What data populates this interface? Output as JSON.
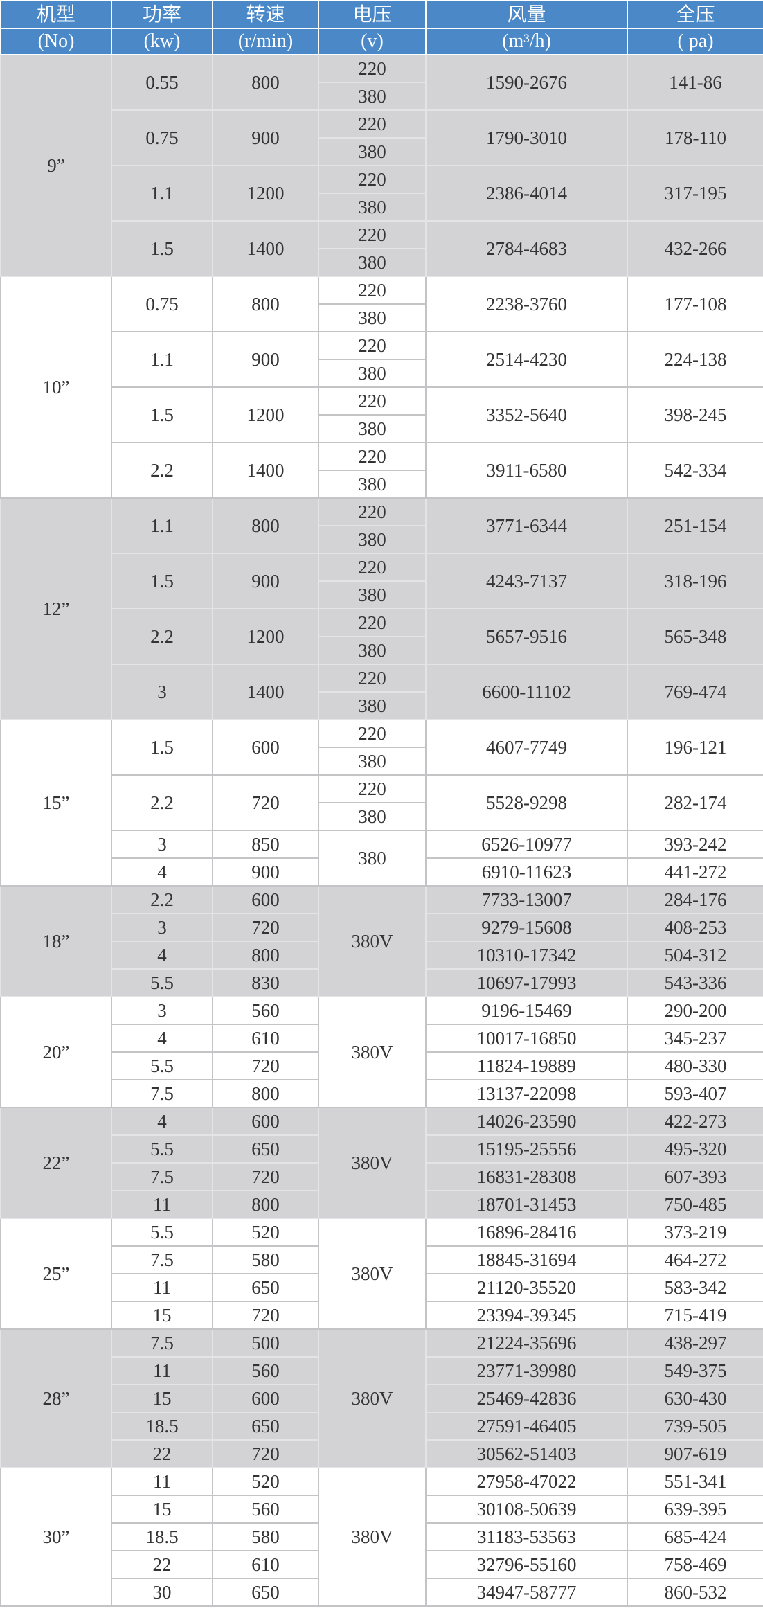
{
  "header": {
    "titles": [
      "机型",
      "功率",
      "转速",
      "电压",
      "风量",
      "全压"
    ],
    "units": [
      "(No)",
      "(kw)",
      "(r/min)",
      "(v)",
      "(m³/h)",
      "( pa)"
    ]
  },
  "colors": {
    "header_bg": "#4a88c8",
    "shaded_bg": "#d3d3d5",
    "text": "#333333"
  },
  "groups": [
    {
      "model": "9”",
      "shaded": true,
      "rows": [
        {
          "power": "0.55",
          "speed": "800",
          "voltage": [
            "220",
            "380"
          ],
          "airflow": "1590-2676",
          "pressure": "141-86"
        },
        {
          "power": "0.75",
          "speed": "900",
          "voltage": [
            "220",
            "380"
          ],
          "airflow": "1790-3010",
          "pressure": "178-110"
        },
        {
          "power": "1.1",
          "speed": "1200",
          "voltage": [
            "220",
            "380"
          ],
          "airflow": "2386-4014",
          "pressure": "317-195"
        },
        {
          "power": "1.5",
          "speed": "1400",
          "voltage": [
            "220",
            "380"
          ],
          "airflow": "2784-4683",
          "pressure": "432-266"
        }
      ]
    },
    {
      "model": "10”",
      "shaded": false,
      "rows": [
        {
          "power": "0.75",
          "speed": "800",
          "voltage": [
            "220",
            "380"
          ],
          "airflow": "2238-3760",
          "pressure": "177-108"
        },
        {
          "power": "1.1",
          "speed": "900",
          "voltage": [
            "220",
            "380"
          ],
          "airflow": "2514-4230",
          "pressure": "224-138"
        },
        {
          "power": "1.5",
          "speed": "1200",
          "voltage": [
            "220",
            "380"
          ],
          "airflow": "3352-5640",
          "pressure": "398-245"
        },
        {
          "power": "2.2",
          "speed": "1400",
          "voltage": [
            "220",
            "380"
          ],
          "airflow": "3911-6580",
          "pressure": "542-334"
        }
      ]
    },
    {
      "model": "12”",
      "shaded": true,
      "rows": [
        {
          "power": "1.1",
          "speed": "800",
          "voltage": [
            "220",
            "380"
          ],
          "airflow": "3771-6344",
          "pressure": "251-154"
        },
        {
          "power": "1.5",
          "speed": "900",
          "voltage": [
            "220",
            "380"
          ],
          "airflow": "4243-7137",
          "pressure": "318-196"
        },
        {
          "power": "2.2",
          "speed": "1200",
          "voltage": [
            "220",
            "380"
          ],
          "airflow": "5657-9516",
          "pressure": "565-348"
        },
        {
          "power": "3",
          "speed": "1400",
          "voltage": [
            "220",
            "380"
          ],
          "airflow": "6600-11102",
          "pressure": "769-474"
        }
      ]
    },
    {
      "model": "15”",
      "shaded": false,
      "shared_voltage": "380",
      "shared_from": 2,
      "rows": [
        {
          "power": "1.5",
          "speed": "600",
          "voltage": [
            "220",
            "380"
          ],
          "airflow": "4607-7749",
          "pressure": "196-121"
        },
        {
          "power": "2.2",
          "speed": "720",
          "voltage": [
            "220",
            "380"
          ],
          "airflow": "5528-9298",
          "pressure": "282-174"
        },
        {
          "power": "3",
          "speed": "850",
          "airflow": "6526-10977",
          "pressure": "393-242"
        },
        {
          "power": "4",
          "speed": "900",
          "airflow": "6910-11623",
          "pressure": "441-272"
        }
      ]
    },
    {
      "model": "18”",
      "shaded": true,
      "shared_voltage": "380V",
      "shared_from": 0,
      "rows": [
        {
          "power": "2.2",
          "speed": "600",
          "airflow": "7733-13007",
          "pressure": "284-176"
        },
        {
          "power": "3",
          "speed": "720",
          "airflow": "9279-15608",
          "pressure": "408-253"
        },
        {
          "power": "4",
          "speed": "800",
          "airflow": "10310-17342",
          "pressure": "504-312"
        },
        {
          "power": "5.5",
          "speed": "830",
          "airflow": "10697-17993",
          "pressure": "543-336"
        }
      ]
    },
    {
      "model": "20”",
      "shaded": false,
      "shared_voltage": "380V",
      "shared_from": 0,
      "rows": [
        {
          "power": "3",
          "speed": "560",
          "airflow": "9196-15469",
          "pressure": "290-200"
        },
        {
          "power": "4",
          "speed": "610",
          "airflow": "10017-16850",
          "pressure": "345-237"
        },
        {
          "power": "5.5",
          "speed": "720",
          "airflow": "11824-19889",
          "pressure": "480-330"
        },
        {
          "power": "7.5",
          "speed": "800",
          "airflow": "13137-22098",
          "pressure": "593-407"
        }
      ]
    },
    {
      "model": "22”",
      "shaded": true,
      "shared_voltage": "380V",
      "shared_from": 0,
      "rows": [
        {
          "power": "4",
          "speed": "600",
          "airflow": "14026-23590",
          "pressure": "422-273"
        },
        {
          "power": "5.5",
          "speed": "650",
          "airflow": "15195-25556",
          "pressure": "495-320"
        },
        {
          "power": "7.5",
          "speed": "720",
          "airflow": "16831-28308",
          "pressure": "607-393"
        },
        {
          "power": "11",
          "speed": "800",
          "airflow": "18701-31453",
          "pressure": "750-485"
        }
      ]
    },
    {
      "model": "25”",
      "shaded": false,
      "shared_voltage": "380V",
      "shared_from": 0,
      "rows": [
        {
          "power": "5.5",
          "speed": "520",
          "airflow": "16896-28416",
          "pressure": "373-219"
        },
        {
          "power": "7.5",
          "speed": "580",
          "airflow": "18845-31694",
          "pressure": "464-272"
        },
        {
          "power": "11",
          "speed": "650",
          "airflow": "21120-35520",
          "pressure": "583-342"
        },
        {
          "power": "15",
          "speed": "720",
          "airflow": "23394-39345",
          "pressure": "715-419"
        }
      ]
    },
    {
      "model": "28”",
      "shaded": true,
      "shared_voltage": "380V",
      "shared_from": 0,
      "rows": [
        {
          "power": "7.5",
          "speed": "500",
          "airflow": "21224-35696",
          "pressure": "438-297"
        },
        {
          "power": "11",
          "speed": "560",
          "airflow": "23771-39980",
          "pressure": "549-375"
        },
        {
          "power": "15",
          "speed": "600",
          "airflow": "25469-42836",
          "pressure": "630-430"
        },
        {
          "power": "18.5",
          "speed": "650",
          "airflow": "27591-46405",
          "pressure": "739-505"
        },
        {
          "power": "22",
          "speed": "720",
          "airflow": "30562-51403",
          "pressure": "907-619"
        }
      ]
    },
    {
      "model": "30”",
      "shaded": false,
      "shared_voltage": "380V",
      "shared_from": 0,
      "rows": [
        {
          "power": "11",
          "speed": "520",
          "airflow": "27958-47022",
          "pressure": "551-341"
        },
        {
          "power": "15",
          "speed": "560",
          "airflow": "30108-50639",
          "pressure": "639-395"
        },
        {
          "power": "18.5",
          "speed": "580",
          "airflow": "31183-53563",
          "pressure": "685-424"
        },
        {
          "power": "22",
          "speed": "610",
          "airflow": "32796-55160",
          "pressure": "758-469"
        },
        {
          "power": "30",
          "speed": "650",
          "airflow": "34947-58777",
          "pressure": "860-532"
        }
      ]
    }
  ]
}
